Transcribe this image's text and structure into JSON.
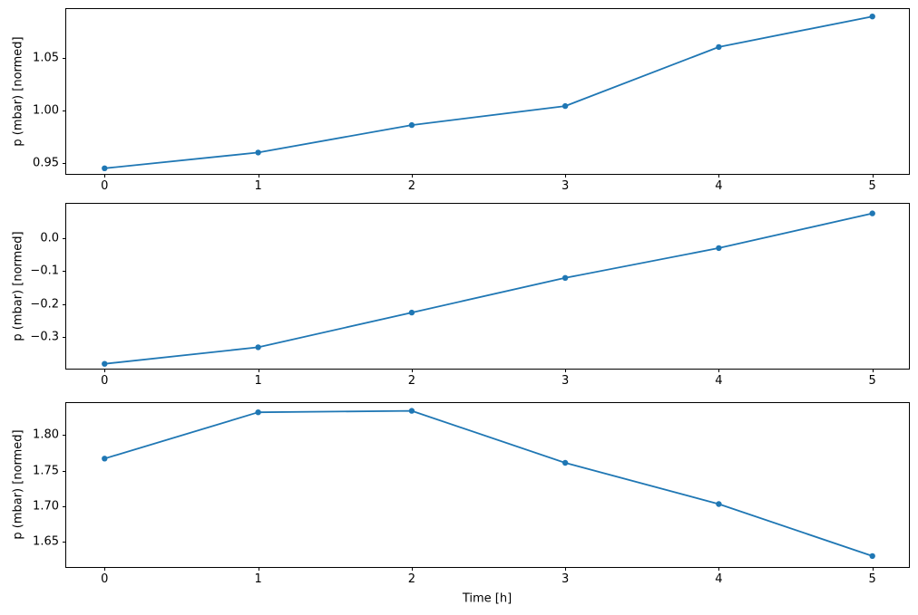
{
  "figure": {
    "background": "#ffffff",
    "axis_color": "#000000",
    "text_color": "#000000"
  },
  "chart_data": [
    {
      "type": "line",
      "title": "",
      "ylabel": "p (mbar) [normed]",
      "x": [
        0,
        1,
        2,
        3,
        4,
        5
      ],
      "values": [
        0.945,
        0.96,
        0.986,
        1.004,
        1.06,
        1.089
      ],
      "xticks": [
        0,
        1,
        2,
        3,
        4,
        5
      ],
      "xtick_labels": [
        "0",
        "1",
        "2",
        "3",
        "4",
        "5"
      ],
      "yticks": [
        0.95,
        1.0,
        1.05
      ],
      "ytick_labels": [
        "0.95",
        "1.00",
        "1.05"
      ],
      "xlim": [
        -0.25,
        5.25
      ],
      "ylim": [
        0.938,
        1.096
      ],
      "grid": false,
      "legend": false,
      "line_color": "#1f77b4",
      "marker": "dot"
    },
    {
      "type": "line",
      "title": "",
      "ylabel": "p (mbar) [normed]",
      "x": [
        0,
        1,
        2,
        3,
        4,
        5
      ],
      "values": [
        -0.38,
        -0.33,
        -0.225,
        -0.12,
        -0.03,
        0.075
      ],
      "xticks": [
        0,
        1,
        2,
        3,
        4,
        5
      ],
      "xtick_labels": [
        "0",
        "1",
        "2",
        "3",
        "4",
        "5"
      ],
      "yticks": [
        0.0,
        -0.1,
        -0.2,
        -0.3
      ],
      "ytick_labels": [
        "0.0",
        "−0.1",
        "−0.2",
        "−0.3"
      ],
      "xlim": [
        -0.25,
        5.25
      ],
      "ylim": [
        -0.4,
        0.104
      ],
      "grid": false,
      "legend": false,
      "line_color": "#1f77b4",
      "marker": "dot"
    },
    {
      "type": "line",
      "title": "",
      "ylabel": "p (mbar) [normed]",
      "xlabel": "Time [h]",
      "x": [
        0,
        1,
        2,
        3,
        4,
        5
      ],
      "values": [
        1.767,
        1.832,
        1.834,
        1.761,
        1.703,
        1.63
      ],
      "xticks": [
        0,
        1,
        2,
        3,
        4,
        5
      ],
      "xtick_labels": [
        "0",
        "1",
        "2",
        "3",
        "4",
        "5"
      ],
      "yticks": [
        1.65,
        1.7,
        1.75,
        1.8
      ],
      "ytick_labels": [
        "1.65",
        "1.70",
        "1.75",
        "1.80"
      ],
      "xlim": [
        -0.25,
        5.25
      ],
      "ylim": [
        1.612,
        1.845
      ],
      "grid": false,
      "legend": false,
      "line_color": "#1f77b4",
      "marker": "dot"
    }
  ]
}
